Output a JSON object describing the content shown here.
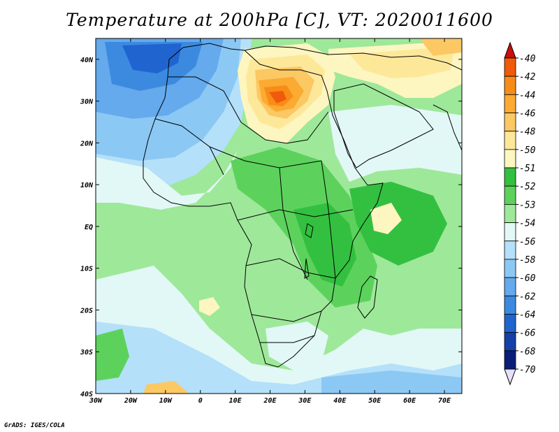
{
  "title": "Temperature at 200hPa [C], VT: 2020011600",
  "footer": "GrADS: IGES/COLA",
  "map": {
    "lon_range": [
      -30,
      75
    ],
    "lat_range": [
      -40,
      45
    ],
    "lon_ticks": [
      "30W",
      "20W",
      "10W",
      "0",
      "10E",
      "20E",
      "30E",
      "40E",
      "50E",
      "60E",
      "70E"
    ],
    "lat_ticks": [
      "40S",
      "30S",
      "20S",
      "10S",
      "EQ",
      "10N",
      "20N",
      "30N",
      "40N"
    ]
  },
  "colorbar": {
    "levels": [
      {
        "label": "-40",
        "color": "#d62a0a"
      },
      {
        "label": "-42",
        "color": "#f05a0a"
      },
      {
        "label": "-44",
        "color": "#f88c18"
      },
      {
        "label": "-46",
        "color": "#fbaa32"
      },
      {
        "label": "-48",
        "color": "#fcc864"
      },
      {
        "label": "-50",
        "color": "#fde89a"
      },
      {
        "label": "-51",
        "color": "#fdf6c0"
      },
      {
        "label": "-52",
        "color": "#33c040"
      },
      {
        "label": "-53",
        "color": "#5cd25c"
      },
      {
        "label": "-54",
        "color": "#9ee89a"
      },
      {
        "label": "-56",
        "color": "#e2f8f6"
      },
      {
        "label": "-58",
        "color": "#b4e0fa"
      },
      {
        "label": "-60",
        "color": "#8cc8f4"
      },
      {
        "label": "-62",
        "color": "#64aaec"
      },
      {
        "label": "-64",
        "color": "#3c8ae0"
      },
      {
        "label": "-66",
        "color": "#2064d0"
      },
      {
        "label": "-68",
        "color": "#1440a8"
      },
      {
        "label": "-70",
        "color": "#0a1e78"
      }
    ],
    "top_arrow_color": "#c8100a",
    "bottom_arrow_color": "#e6e0f8"
  }
}
